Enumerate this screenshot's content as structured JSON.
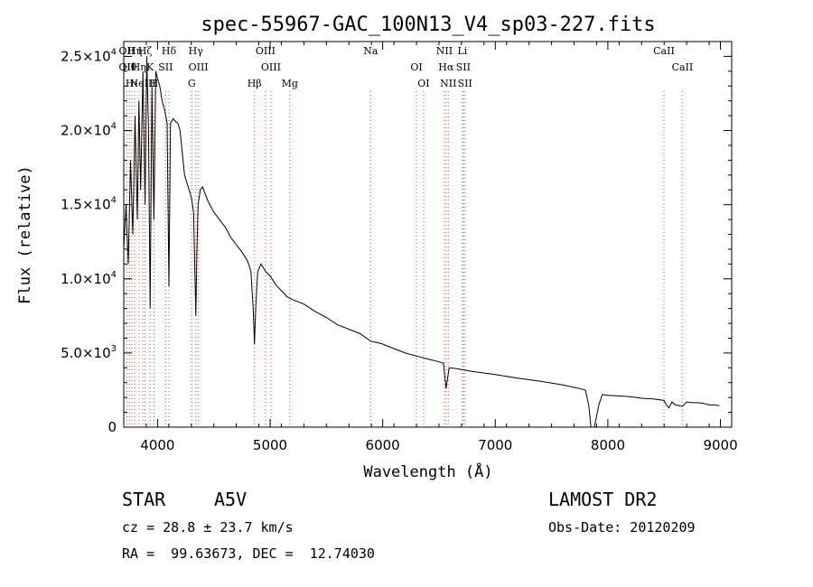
{
  "chart_data": {
    "type": "line",
    "title": "spec-55967-GAC_100N13_V4_sp03-227.fits",
    "xlabel": "Wavelength (Å)",
    "ylabel": "Flux (relative)",
    "xlim": [
      3700,
      9100
    ],
    "ylim": [
      0,
      26000
    ],
    "x_ticks": [
      4000,
      5000,
      6000,
      7000,
      8000,
      9000
    ],
    "x_tick_labels": [
      "4000",
      "5000",
      "6000",
      "7000",
      "8000",
      "9000"
    ],
    "y_ticks": [
      0,
      5000,
      10000,
      15000,
      20000,
      25000
    ],
    "y_tick_labels": [
      "0",
      "5.0×10^3",
      "1.0×10^4",
      "1.5×10^4",
      "2.0×10^4",
      "2.5×10^4"
    ],
    "grid": false,
    "series": [
      {
        "x": [
          3700,
          3720,
          3740,
          3760,
          3780,
          3800,
          3820,
          3835,
          3850,
          3870,
          3889,
          3905,
          3920,
          3934,
          3950,
          3968,
          3985,
          4000,
          4020,
          4040,
          4060,
          4085,
          4101,
          4115,
          4140,
          4160,
          4180,
          4200,
          4220,
          4240,
          4260,
          4280,
          4300,
          4320,
          4340,
          4350,
          4360,
          4380,
          4400,
          4450,
          4500,
          4550,
          4600,
          4650,
          4700,
          4750,
          4800,
          4830,
          4850,
          4861,
          4875,
          4890,
          4920,
          4960,
          5000,
          5050,
          5100,
          5150,
          5200,
          5300,
          5400,
          5500,
          5600,
          5700,
          5800,
          5893,
          5950,
          6000,
          6100,
          6200,
          6300,
          6400,
          6500,
          6540,
          6563,
          6590,
          6650,
          6800,
          7000,
          7200,
          7400,
          7600,
          7750,
          7800,
          7830,
          7850,
          7880,
          7920,
          7950,
          8000,
          8100,
          8200,
          8300,
          8400,
          8498,
          8520,
          8542,
          8570,
          8600,
          8662,
          8700,
          8750,
          8800,
          8850,
          8900,
          8950,
          8990
        ],
        "y": [
          12000,
          15000,
          11000,
          18000,
          13000,
          21000,
          14000,
          22000,
          16000,
          24000,
          15000,
          25000,
          20000,
          8000,
          23000,
          14000,
          24000,
          23500,
          23000,
          22000,
          21500,
          20500,
          9500,
          20500,
          20800,
          20600,
          20500,
          20000,
          18500,
          17000,
          16500,
          16000,
          15500,
          14500,
          7500,
          12000,
          15000,
          16000,
          16200,
          15200,
          14500,
          14000,
          13500,
          12800,
          12300,
          11800,
          11200,
          10500,
          8000,
          5600,
          8500,
          10500,
          11000,
          10500,
          10200,
          9600,
          9200,
          8800,
          8600,
          8300,
          7800,
          7400,
          6900,
          6600,
          6300,
          5800,
          5700,
          5600,
          5300,
          5000,
          4800,
          4600,
          4400,
          4300,
          2600,
          4000,
          3950,
          3750,
          3550,
          3300,
          3100,
          2850,
          2600,
          2500,
          1500,
          0,
          0,
          1500,
          2200,
          2150,
          2100,
          2050,
          1950,
          1900,
          1800,
          1500,
          1300,
          1700,
          1500,
          1400,
          1700,
          1650,
          1650,
          1600,
          1500,
          1500,
          1450
        ]
      }
    ],
    "lines": [
      {
        "wl": 3727,
        "labels": [
          "OII",
          "OII"
        ]
      },
      {
        "wl": 3750,
        "labels": [
          "Hθ"
        ]
      },
      {
        "wl": 3771,
        "labels": [
          "Hι"
        ]
      },
      {
        "wl": 3798,
        "labels": [
          "Hη"
        ]
      },
      {
        "wl": 3835,
        "labels": [
          "Hη"
        ]
      },
      {
        "wl": 3869,
        "labels": [
          "NeIII"
        ]
      },
      {
        "wl": 3889,
        "labels": [
          "Hζ"
        ]
      },
      {
        "wl": 3934,
        "labels": [
          "K"
        ]
      },
      {
        "wl": 3968,
        "labels": [
          "H"
        ]
      },
      {
        "wl": 4101,
        "labels": [
          "Hδ"
        ]
      },
      {
        "wl": 4072,
        "labels": [
          "SII"
        ]
      },
      {
        "wl": 4304,
        "labels": [
          "G"
        ]
      },
      {
        "wl": 4340,
        "labels": [
          "Hγ"
        ]
      },
      {
        "wl": 4363,
        "labels": [
          "OIII"
        ]
      },
      {
        "wl": 4861,
        "labels": [
          "Hβ"
        ]
      },
      {
        "wl": 4959,
        "labels": [
          "OIII"
        ]
      },
      {
        "wl": 5007,
        "labels": [
          "OIII"
        ]
      },
      {
        "wl": 5175,
        "labels": [
          "Mg"
        ]
      },
      {
        "wl": 5893,
        "labels": [
          "Na"
        ]
      },
      {
        "wl": 6300,
        "labels": [
          "OI"
        ]
      },
      {
        "wl": 6363,
        "labels": [
          "OI"
        ]
      },
      {
        "wl": 6548,
        "labels": [
          "NII"
        ]
      },
      {
        "wl": 6563,
        "labels": [
          "Hα"
        ]
      },
      {
        "wl": 6583,
        "labels": [
          "NII"
        ]
      },
      {
        "wl": 6708,
        "labels": [
          "Li"
        ]
      },
      {
        "wl": 6716,
        "labels": [
          "SII"
        ]
      },
      {
        "wl": 6731,
        "labels": [
          "SII"
        ]
      },
      {
        "wl": 8498,
        "labels": [
          "CaII"
        ]
      },
      {
        "wl": 8662,
        "labels": [
          "CaII"
        ]
      }
    ]
  },
  "info": {
    "object_class": "STAR",
    "subclass": "A5V",
    "survey": "LAMOST DR2",
    "cz": "cz = 28.8 ± 23.7 km/s",
    "obs_date": "Obs-Date: 20120209",
    "coords": "RA =  99.63673, DEC =  12.74030"
  },
  "colors": {
    "axis": "#000000",
    "spectrum": "#000000",
    "line_marker": "#e8423f"
  }
}
